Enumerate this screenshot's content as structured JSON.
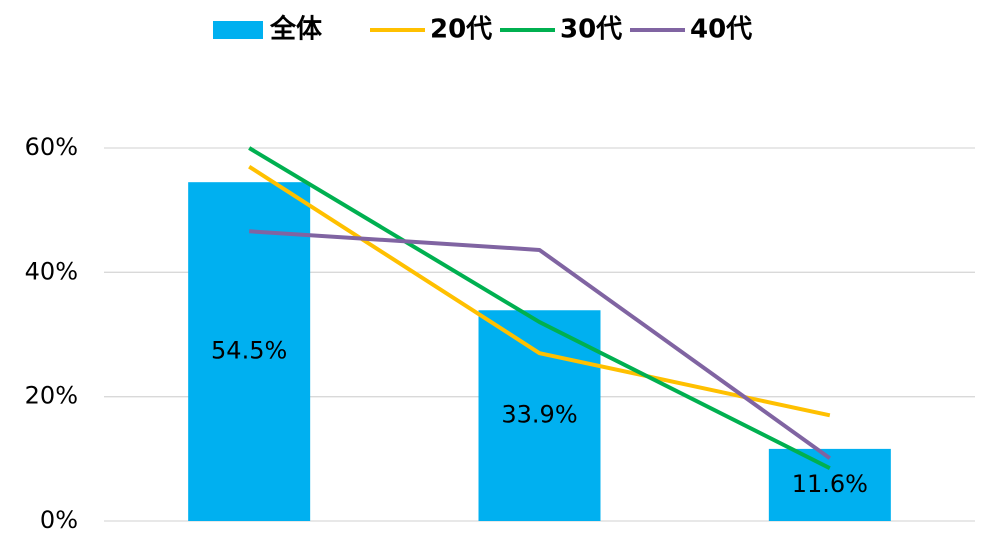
{
  "chart_data": {
    "type": "bar_line",
    "categories": [
      null,
      null,
      null
    ],
    "series": [
      {
        "name": "全体",
        "type": "bar",
        "color": "#00b0f0",
        "values": [
          54.5,
          33.9,
          11.6
        ],
        "value_labels": [
          "54.5%",
          "33.9%",
          "11.6%"
        ]
      },
      {
        "name": "20代",
        "type": "line",
        "color": "#ffc000",
        "values": [
          57,
          27,
          17
        ]
      },
      {
        "name": "30代",
        "type": "line",
        "color": "#00b050",
        "values": [
          60,
          32,
          8.5
        ]
      },
      {
        "name": "40代",
        "type": "line",
        "color": "#8064a2",
        "values": [
          46.6,
          43.6,
          10.1
        ]
      }
    ],
    "ylim": [
      0,
      60
    ],
    "yticks": [
      {
        "value": 0,
        "label": "0%"
      },
      {
        "value": 20,
        "label": "20%"
      },
      {
        "value": 40,
        "label": "40%"
      },
      {
        "value": 60,
        "label": "60%"
      }
    ],
    "grid": true,
    "legend": "top"
  }
}
